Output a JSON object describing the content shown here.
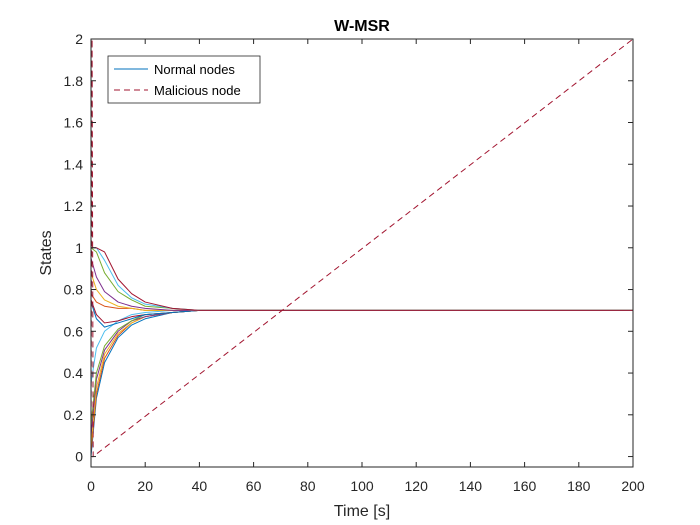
{
  "chart_data": {
    "type": "line",
    "title": "W-MSR",
    "xlabel": "Time [s]",
    "ylabel": "States",
    "xlim": [
      0,
      200
    ],
    "ylim": [
      -0.05,
      2
    ],
    "xticks": [
      0,
      20,
      40,
      60,
      80,
      100,
      120,
      140,
      160,
      180,
      200
    ],
    "yticks": [
      0,
      0.2,
      0.4,
      0.6,
      0.8,
      1,
      1.2,
      1.4,
      1.6,
      1.8,
      2
    ],
    "grid": false,
    "legend_position": "top-left",
    "legend": [
      "Normal nodes",
      "Malicious node"
    ],
    "consensus_value": 0.7,
    "normal_nodes": {
      "name": "Normal nodes",
      "colors": [
        "#0072bd",
        "#d95319",
        "#edb120",
        "#7e2f8e",
        "#77ac30",
        "#4dbeee",
        "#a2142f"
      ],
      "series": [
        {
          "x": [
            0,
            2,
            5,
            10,
            15,
            20,
            30,
            40,
            50,
            60,
            200
          ],
          "y": [
            0.0,
            0.28,
            0.45,
            0.57,
            0.63,
            0.66,
            0.69,
            0.7,
            0.7,
            0.7,
            0.7
          ]
        },
        {
          "x": [
            0,
            2,
            5,
            10,
            15,
            20,
            30,
            40,
            50,
            60,
            200
          ],
          "y": [
            0.02,
            0.3,
            0.47,
            0.58,
            0.64,
            0.67,
            0.69,
            0.7,
            0.7,
            0.7,
            0.7
          ]
        },
        {
          "x": [
            0,
            2,
            5,
            10,
            15,
            20,
            30,
            40,
            50,
            60,
            200
          ],
          "y": [
            0.05,
            0.33,
            0.49,
            0.59,
            0.64,
            0.67,
            0.69,
            0.7,
            0.7,
            0.7,
            0.7
          ]
        },
        {
          "x": [
            0,
            2,
            5,
            10,
            15,
            20,
            30,
            40,
            50,
            60,
            200
          ],
          "y": [
            0.1,
            0.37,
            0.51,
            0.6,
            0.65,
            0.67,
            0.69,
            0.7,
            0.7,
            0.7,
            0.7
          ]
        },
        {
          "x": [
            0,
            2,
            5,
            10,
            15,
            20,
            30,
            40,
            50,
            60,
            200
          ],
          "y": [
            0.15,
            0.4,
            0.53,
            0.61,
            0.65,
            0.68,
            0.69,
            0.7,
            0.7,
            0.7,
            0.7
          ]
        },
        {
          "x": [
            0,
            2,
            5,
            10,
            15,
            20,
            30,
            40,
            50,
            60,
            200
          ],
          "y": [
            0.35,
            0.52,
            0.6,
            0.65,
            0.68,
            0.69,
            0.7,
            0.7,
            0.7,
            0.7,
            0.7
          ]
        },
        {
          "x": [
            0,
            2,
            5,
            10,
            15,
            20,
            30,
            40,
            50,
            60,
            200
          ],
          "y": [
            0.75,
            0.68,
            0.64,
            0.65,
            0.67,
            0.68,
            0.69,
            0.7,
            0.7,
            0.7,
            0.7
          ]
        },
        {
          "x": [
            0,
            2,
            5,
            10,
            15,
            20,
            30,
            40,
            50,
            60,
            200
          ],
          "y": [
            0.74,
            0.66,
            0.62,
            0.64,
            0.66,
            0.68,
            0.69,
            0.7,
            0.7,
            0.7,
            0.7
          ]
        },
        {
          "x": [
            0,
            2,
            5,
            10,
            15,
            20,
            30,
            40,
            50,
            60,
            200
          ],
          "y": [
            0.78,
            0.74,
            0.72,
            0.71,
            0.71,
            0.7,
            0.7,
            0.7,
            0.7,
            0.7,
            0.7
          ]
        },
        {
          "x": [
            0,
            2,
            5,
            10,
            15,
            20,
            30,
            40,
            50,
            60,
            200
          ],
          "y": [
            0.88,
            0.8,
            0.75,
            0.72,
            0.71,
            0.7,
            0.7,
            0.7,
            0.7,
            0.7,
            0.7
          ]
        },
        {
          "x": [
            0,
            2,
            5,
            10,
            15,
            20,
            30,
            40,
            50,
            60,
            200
          ],
          "y": [
            0.95,
            0.86,
            0.79,
            0.74,
            0.72,
            0.71,
            0.7,
            0.7,
            0.7,
            0.7,
            0.7
          ]
        },
        {
          "x": [
            0,
            2,
            5,
            10,
            15,
            20,
            30,
            40,
            50,
            60,
            200
          ],
          "y": [
            1.0,
            0.98,
            0.88,
            0.79,
            0.75,
            0.72,
            0.71,
            0.7,
            0.7,
            0.7,
            0.7
          ]
        },
        {
          "x": [
            0,
            2,
            5,
            10,
            15,
            20,
            30,
            40,
            50,
            60,
            200
          ],
          "y": [
            1.0,
            1.0,
            0.94,
            0.82,
            0.76,
            0.73,
            0.71,
            0.7,
            0.7,
            0.7,
            0.7
          ]
        },
        {
          "x": [
            0,
            2,
            5,
            10,
            15,
            20,
            30,
            40,
            50,
            60,
            200
          ],
          "y": [
            1.0,
            1.0,
            0.98,
            0.85,
            0.78,
            0.74,
            0.71,
            0.7,
            0.7,
            0.7,
            0.7
          ]
        }
      ]
    },
    "malicious_node": {
      "name": "Malicious node",
      "color": "#a2142f",
      "style": "dashed",
      "x": [
        0,
        0.4,
        0.8,
        200
      ],
      "y": [
        0,
        2,
        0,
        2
      ]
    }
  }
}
